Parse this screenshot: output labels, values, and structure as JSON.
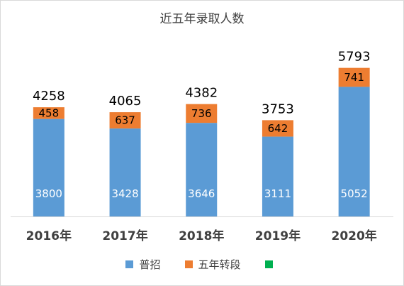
{
  "chart_data": {
    "type": "bar",
    "stacked": true,
    "title": "近五年录取人数",
    "categories": [
      "2016年",
      "2017年",
      "2018年",
      "2019年",
      "2020年"
    ],
    "series": [
      {
        "name": "普招",
        "color": "#5b9bd5",
        "values": [
          3800,
          3428,
          3646,
          3111,
          5052
        ],
        "labels": [
          "3800",
          "3428",
          "3646",
          "3111",
          "5052"
        ]
      },
      {
        "name": "五年转段",
        "color": "#ed7d31",
        "values": [
          458,
          637,
          736,
          642,
          741
        ],
        "labels": [
          "458",
          "637",
          "736",
          "642",
          "741"
        ]
      },
      {
        "name": "",
        "color": "#00b050",
        "values": [
          4258,
          4065,
          4382,
          3753,
          5793
        ],
        "labels": [
          "4258",
          "4065",
          "4382",
          "3753",
          "5793"
        ]
      }
    ],
    "xlabel": "",
    "ylabel": "",
    "grid": false,
    "legend": "bottom"
  }
}
